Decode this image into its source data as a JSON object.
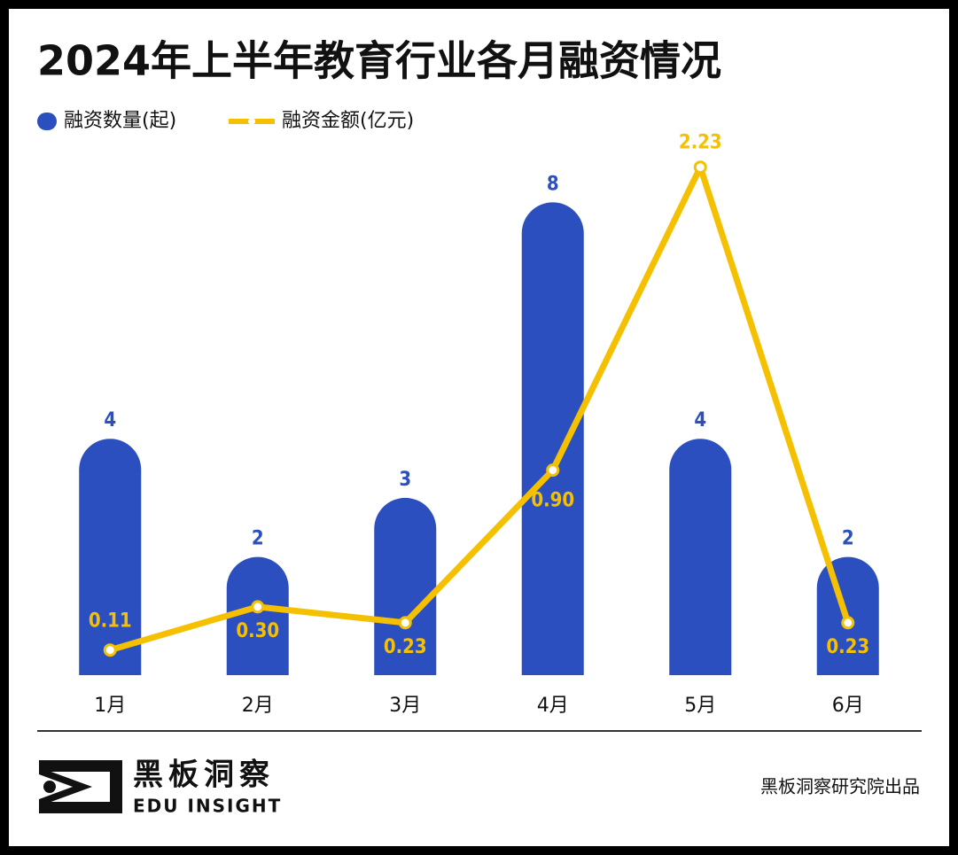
{
  "chart_data": {
    "type": "bar_line",
    "title": "2024年上半年教育行业各月融资情况",
    "categories": [
      "1月",
      "2月",
      "3月",
      "4月",
      "5月",
      "6月"
    ],
    "series": [
      {
        "name": "融资数量(起)",
        "type": "bar",
        "color": "#2c4fbf",
        "values": [
          4,
          2,
          3,
          8,
          4,
          2
        ]
      },
      {
        "name": "融资金额(亿元)",
        "type": "line",
        "axis": "y2",
        "color": "#f5c000",
        "values": [
          0.11,
          0.3,
          0.23,
          0.9,
          2.23,
          0.23
        ],
        "value_labels": [
          "0.11",
          "0.30",
          "0.23",
          "0.90",
          "2.23",
          "0.23"
        ]
      }
    ],
    "ylim": [
      0,
      9.25
    ],
    "y2lim": [
      0,
      2.4
    ],
    "grid": false
  },
  "footer": {
    "logo_cn": "黑板洞察",
    "logo_en": "EDU INSIGHT",
    "credit": "黑板洞察研究院出品"
  }
}
